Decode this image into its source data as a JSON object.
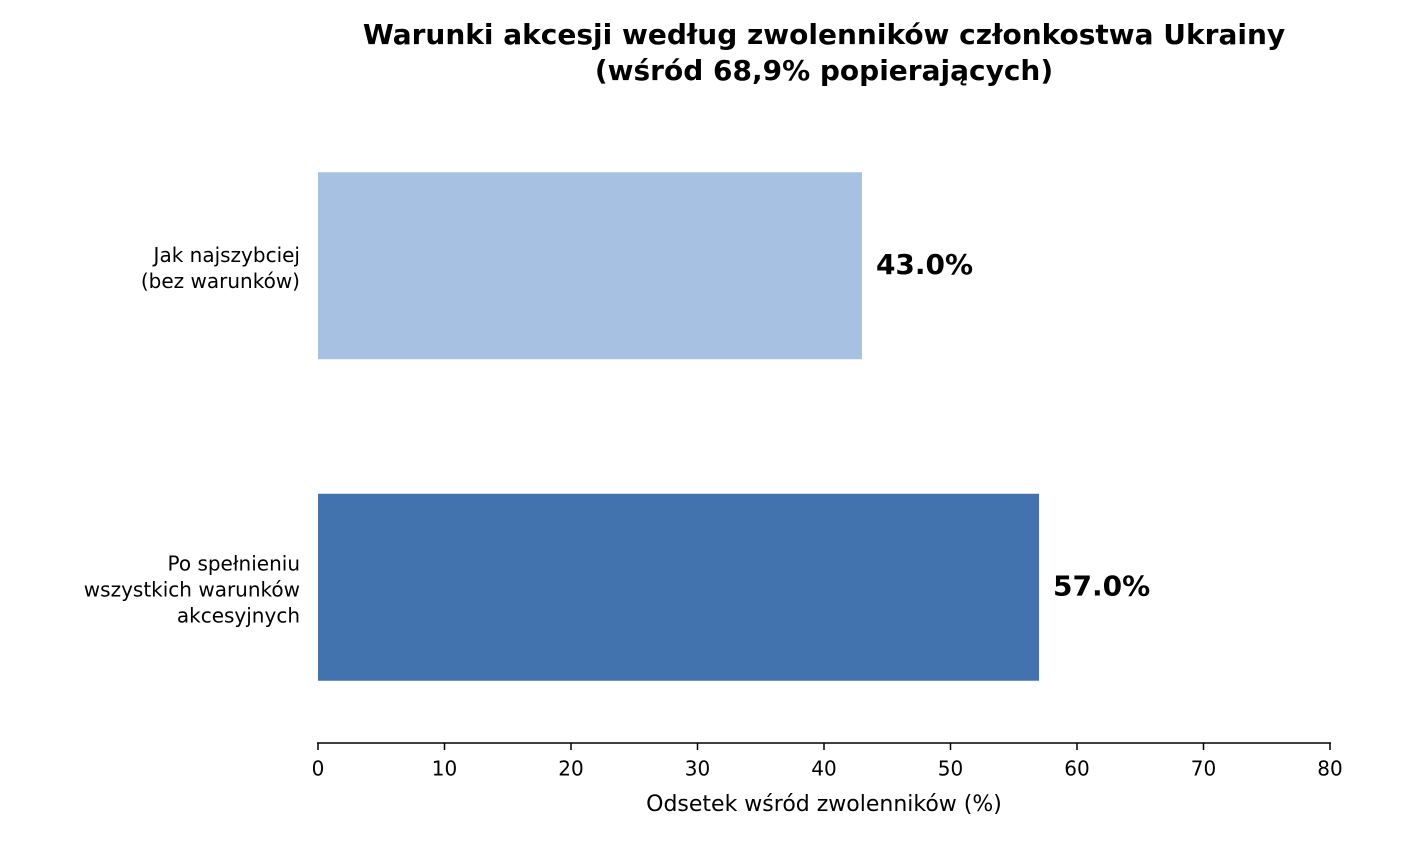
{
  "chart_data": {
    "type": "bar",
    "orientation": "horizontal",
    "title": "Warunki akcesji według zwolenników członkostwa Ukrainy\n(wśród 68,9% popierających)",
    "categories": [
      "Jak najszybciej\n(bez warunków)",
      "Po spełnieniu\nwszystkich warunków\nakcesyjnych"
    ],
    "values": [
      43,
      57
    ],
    "value_labels": [
      "43.0%",
      "57.0%"
    ],
    "colors": [
      "#a6c1e1",
      "#4273ae"
    ],
    "xlabel": "Odsetek wśród zwolenników (%)",
    "xlim": [
      0,
      80
    ],
    "xticks": [
      0,
      10,
      20,
      30,
      40,
      50,
      60,
      70,
      80
    ],
    "grid": false
  }
}
